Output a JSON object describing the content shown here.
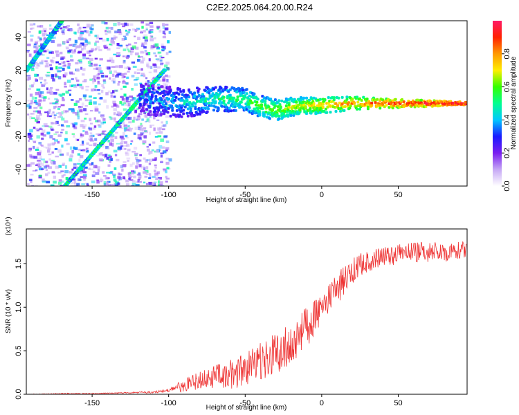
{
  "title": "C2E2.2025.064.20.00.R24",
  "chart_data": [
    {
      "type": "heatmap",
      "xlabel": "Height of straight line (km)",
      "ylabel": "Frequency (Hz)",
      "xlim": [
        -193,
        95
      ],
      "ylim": [
        -50,
        50
      ],
      "xticks": [
        -150,
        -100,
        -50,
        0,
        50
      ],
      "yticks": [
        -40,
        -20,
        0,
        20,
        40
      ],
      "colorbar": {
        "label": "Normalized spectral amplitude",
        "range": [
          0,
          1
        ],
        "ticks": [
          "0.0",
          "0.2",
          "0.4",
          "0.6",
          "0.8"
        ],
        "tick_values": [
          0,
          0.2,
          0.4,
          0.6,
          0.8
        ],
        "colors": [
          "#ffffff",
          "#c6a8f5",
          "#7a1ef0",
          "#1a1aff",
          "#00c8ff",
          "#00ff90",
          "#33ff00",
          "#ffee00",
          "#ff9900",
          "#ff2200",
          "#ff1a66"
        ]
      },
      "features": [
        {
          "name": "noise",
          "x": [
            -193,
            -100
          ],
          "y": [
            -50,
            50
          ]
        },
        {
          "name": "line",
          "points": [
            [
              -193,
              20
            ],
            [
              -170,
              50
            ]
          ]
        },
        {
          "name": "line",
          "points": [
            [
              -168,
              -50
            ],
            [
              -103,
              20
            ]
          ]
        },
        {
          "name": "main_band",
          "points": [
            [
              -120,
              3
            ],
            [
              -90,
              0
            ],
            [
              -70,
              3
            ],
            [
              -50,
              2
            ],
            [
              -40,
              -2
            ],
            [
              -30,
              -4
            ],
            [
              -20,
              -2
            ],
            [
              0,
              -1
            ],
            [
              20,
              0
            ],
            [
              95,
              0
            ]
          ]
        }
      ]
    },
    {
      "type": "line",
      "xlabel": "Height of straight line (km)",
      "ylabel": "SNR (10 * v/v)",
      "y_multiplier": "(x10⁴)",
      "xlim": [
        -193,
        95
      ],
      "ylim": [
        0,
        1.9
      ],
      "xticks": [
        -150,
        -100,
        -50,
        0,
        50
      ],
      "yticks": [
        "0.0",
        "0.5",
        "1.0",
        "1.5"
      ],
      "ytick_values": [
        0,
        0.5,
        1.0,
        1.5
      ],
      "color": "#ee3333",
      "series": [
        {
          "x": [
            -193,
            -170,
            -150,
            -130,
            -110,
            -100,
            -95,
            -85,
            -75,
            -65,
            -55,
            -45,
            -35,
            -25,
            -20,
            -15,
            -10,
            -5,
            0,
            5,
            10,
            15,
            20,
            25,
            30,
            40,
            50,
            60,
            70,
            80,
            95
          ],
          "y": [
            0.0,
            0.01,
            0.01,
            0.02,
            0.03,
            0.05,
            0.1,
            0.18,
            0.25,
            0.3,
            0.35,
            0.45,
            0.55,
            0.65,
            0.72,
            0.8,
            0.9,
            1.0,
            1.1,
            1.2,
            1.3,
            1.42,
            1.5,
            1.56,
            1.6,
            1.65,
            1.68,
            1.7,
            1.7,
            1.71,
            1.72
          ],
          "spread": [
            0.01,
            0.01,
            0.01,
            0.01,
            0.02,
            0.03,
            0.09,
            0.15,
            0.2,
            0.25,
            0.3,
            0.35,
            0.4,
            0.45,
            0.45,
            0.45,
            0.4,
            0.35,
            0.3,
            0.3,
            0.3,
            0.28,
            0.25,
            0.25,
            0.2,
            0.2,
            0.2,
            0.2,
            0.2,
            0.2,
            0.15
          ]
        }
      ]
    }
  ]
}
